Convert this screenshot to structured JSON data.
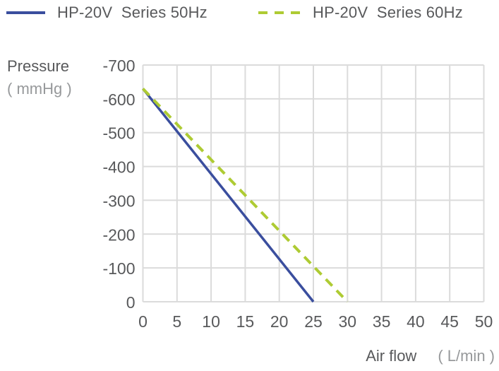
{
  "legend": {
    "items": [
      {
        "label": "HP-20V  Series 50Hz"
      },
      {
        "label": "HP-20V  Series 60Hz"
      }
    ]
  },
  "chart_data": {
    "type": "line",
    "title": "",
    "xlabel": "Air flow",
    "xlabel_unit": "( L/min )",
    "ylabel": "Pressure",
    "ylabel_unit": "( mmHg )",
    "xlim": [
      0,
      50
    ],
    "ylim": [
      -700,
      0
    ],
    "y_axis_direction": "top-to-bottom",
    "x_ticks": [
      0,
      5,
      10,
      15,
      20,
      25,
      30,
      35,
      40,
      45,
      50
    ],
    "y_ticks": [
      -700,
      -600,
      -500,
      -400,
      -300,
      -200,
      -100,
      0
    ],
    "grid": true,
    "grid_color": "#DBDBDB",
    "legend_position": "top",
    "text_color": "#58595B",
    "unit_text_color": "#97999B",
    "series": [
      {
        "name": "HP-20V  Series 50Hz",
        "color": "#3A4E9E",
        "style": "solid",
        "points": [
          [
            0,
            -630
          ],
          [
            25,
            0
          ]
        ]
      },
      {
        "name": "HP-20V  Series 60Hz",
        "color": "#AECB33",
        "style": "dashed",
        "points": [
          [
            0,
            -630
          ],
          [
            30,
            0
          ]
        ]
      }
    ]
  }
}
